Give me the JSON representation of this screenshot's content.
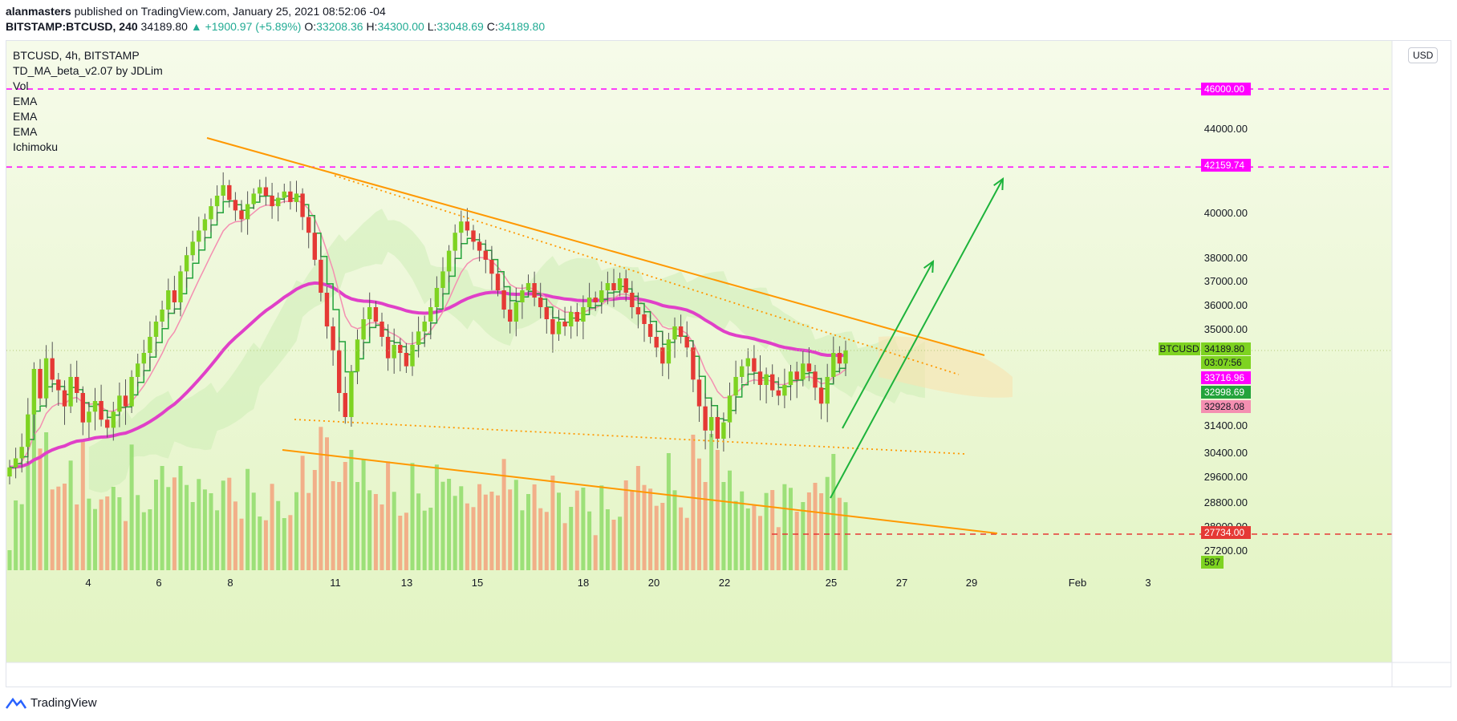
{
  "header": {
    "author": "alanmasters",
    "published_text": "published on TradingView.com, January 25, 2021 08:52:06 -04",
    "symbol_exchange": "BITSTAMP:BTCUSD, 240",
    "last": "34189.80",
    "change": "▲ +1900.97 (+5.89%)",
    "o_label": "O:",
    "o": "33208.36",
    "h_label": "H:",
    "h": "34300.00",
    "l_label": "L:",
    "l": "33048.69",
    "c_label": "C:",
    "c": "34189.80"
  },
  "legend": {
    "title": "BTCUSD, 4h, BITSTAMP",
    "items": [
      "TD_MA_beta_v2.07 by JDLim",
      "Vol",
      "EMA",
      "EMA",
      "EMA",
      "Ichimoku"
    ]
  },
  "currency_button": "USD",
  "footer": {
    "brand": "TradingView"
  },
  "colors": {
    "up": "#7ed321",
    "down": "#e53935",
    "magenta": "#ff00ff",
    "orange": "#ff9800",
    "green_arrow": "#1db33b",
    "ema_pink": "#e040c8",
    "ema_light": "#f48fb1",
    "ema_green": "#23a33b",
    "bg_top": "#f4fae6",
    "bg_bottom": "#e3f5c4"
  },
  "chart_data": {
    "type": "candlestick",
    "y_axis": {
      "ticks": [
        40000,
        38000,
        37000,
        36000,
        35000,
        34189.8,
        33716.96,
        32998.69,
        32928.08,
        31400,
        30400,
        29600,
        28800,
        28000,
        27200
      ],
      "tick_labels": [
        "40000.00",
        "38000.00",
        "37000.00",
        "36000.00",
        "35000.00",
        "31400.00",
        "30400.00",
        "29600.00",
        "28800.00",
        "28000.00",
        "27200.00"
      ],
      "top_labels": [
        "44000.00"
      ],
      "ylim": [
        26800,
        48000
      ]
    },
    "x_axis": {
      "tick_labels": [
        "4",
        "6",
        "8",
        "11",
        "13",
        "15",
        "18",
        "20",
        "22",
        "25",
        "27",
        "29",
        "Feb",
        "3"
      ]
    },
    "price_labels": [
      {
        "value": "46000.00",
        "color": "#ff00ff"
      },
      {
        "value": "42159.74",
        "color": "#ff00ff"
      },
      {
        "value": "34189.80",
        "prefix": "BTCUSD",
        "color": "#7ed321"
      },
      {
        "value": "03:07:56",
        "color": "#7ed321"
      },
      {
        "value": "33716.96",
        "color": "#ff00ff"
      },
      {
        "value": "32998.69",
        "color": "#23a33b"
      },
      {
        "value": "32928.08",
        "color": "#f48fb1"
      },
      {
        "value": "27734.00",
        "color": "#e53935"
      },
      {
        "value": "587",
        "color": "#7ed321"
      }
    ],
    "horizontal_levels": [
      {
        "value": 46000,
        "color": "#ff00ff",
        "style": "dashed"
      },
      {
        "value": 42159.74,
        "color": "#ff00ff",
        "style": "dashed"
      },
      {
        "value": 27734,
        "color": "#e53935",
        "style": "dashed"
      }
    ],
    "close_path": [
      29900,
      30200,
      30600,
      31800,
      33500,
      32400,
      33900,
      33100,
      32700,
      32100,
      33200,
      32600,
      31500,
      31900,
      32300,
      31600,
      31300,
      31900,
      32500,
      32100,
      33200,
      33700,
      34100,
      34700,
      35300,
      35800,
      36600,
      36100,
      37400,
      38100,
      38700,
      39200,
      39700,
      40300,
      40800,
      41300,
      40600,
      40100,
      39700,
      40400,
      40900,
      41200,
      40800,
      40300,
      40700,
      41000,
      40500,
      40900,
      39800,
      39100,
      37900,
      36500,
      35100,
      34200,
      32600,
      31700,
      33400,
      34600,
      35400,
      35900,
      35300,
      34700,
      33900,
      34400,
      34100,
      33600,
      34400,
      34900,
      35300,
      35900,
      36700,
      37400,
      38300,
      39100,
      39600,
      39200,
      38700,
      38300,
      37900,
      37300,
      36600,
      35800,
      35300,
      36100,
      36600,
      36900,
      36300,
      35900,
      35400,
      34800,
      35300,
      35100,
      35700,
      35300,
      35900,
      36300,
      36100,
      36600,
      36900,
      36600,
      37100,
      36500,
      35900,
      35600,
      35200,
      34700,
      34300,
      33700,
      34600,
      35100,
      34700,
      34300,
      33100,
      32100,
      31200,
      31700,
      30900,
      31500,
      32500,
      33200,
      33600,
      33900,
      33400,
      32900,
      33300,
      32700,
      32500,
      32900,
      33400,
      33100,
      33700,
      33400,
      32800,
      32200,
      33200,
      34100,
      33700,
      34190
    ],
    "volume_note": "volume histogram (587 last)"
  }
}
